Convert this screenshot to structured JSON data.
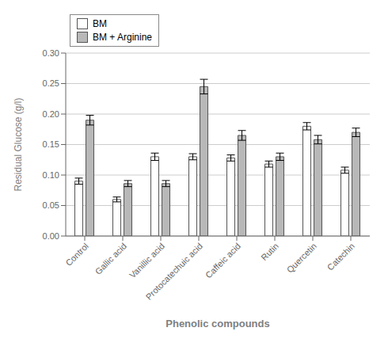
{
  "chart_data": {
    "type": "bar",
    "categories": [
      "Control",
      "Gallic acid",
      "Vanillic acid",
      "Protocatechuic acid",
      "Caffeic acid",
      "Rutin",
      "Quercetin",
      "Catechin"
    ],
    "series": [
      {
        "name": "BM",
        "color": "#ffffff",
        "values": [
          0.09,
          0.06,
          0.13,
          0.13,
          0.128,
          0.118,
          0.18,
          0.108
        ],
        "errors": [
          0.005,
          0.004,
          0.006,
          0.005,
          0.005,
          0.005,
          0.006,
          0.005
        ]
      },
      {
        "name": "BM + Arginine",
        "color": "#b8b8b8",
        "values": [
          0.19,
          0.086,
          0.086,
          0.245,
          0.165,
          0.13,
          0.158,
          0.17
        ],
        "errors": [
          0.008,
          0.005,
          0.005,
          0.012,
          0.008,
          0.006,
          0.007,
          0.007
        ]
      }
    ],
    "ylabel": "Residual Glucose (g/l)",
    "xlabel": "Phenolic compounds",
    "ylim": [
      0.0,
      0.3
    ],
    "yticks": [
      {
        "value": 0,
        "label": "0.00"
      },
      0.05,
      {
        "value": 0.1,
        "label": "0.10"
      },
      0.15,
      {
        "value": 0.2,
        "label": "0.20"
      },
      0.25,
      {
        "value": 0.3,
        "label": "0.30"
      }
    ],
    "grid": true,
    "legend": "upper left"
  }
}
